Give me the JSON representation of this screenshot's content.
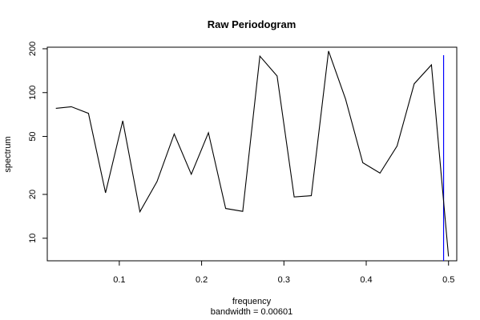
{
  "chart_data": {
    "type": "line",
    "title": "Raw Periodogram",
    "xlabel": "frequency",
    "xsublabel": "bandwidth = 0.00601",
    "ylabel": "spectrum",
    "y_scale": "log",
    "xlim": [
      0.0125,
      0.51
    ],
    "ylim": [
      7.0,
      205
    ],
    "x_ticks": [
      {
        "value": 0.1,
        "label": "0.1"
      },
      {
        "value": 0.2,
        "label": "0.2"
      },
      {
        "value": 0.3,
        "label": "0.3"
      },
      {
        "value": 0.4,
        "label": "0.4"
      },
      {
        "value": 0.5,
        "label": "0.5"
      }
    ],
    "y_ticks": [
      {
        "value": 10,
        "label": "10"
      },
      {
        "value": 20,
        "label": "20"
      },
      {
        "value": 50,
        "label": "50"
      },
      {
        "value": 100,
        "label": "100"
      },
      {
        "value": 200,
        "label": "200"
      }
    ],
    "series": [
      {
        "color": "#000000",
        "points": [
          [
            0.0229,
            78
          ],
          [
            0.0417,
            80
          ],
          [
            0.0625,
            72
          ],
          [
            0.0833,
            20.5
          ],
          [
            0.1042,
            64
          ],
          [
            0.125,
            15.2
          ],
          [
            0.1458,
            24.5
          ],
          [
            0.1667,
            52
          ],
          [
            0.1875,
            27.5
          ],
          [
            0.2083,
            53
          ],
          [
            0.2292,
            16
          ],
          [
            0.25,
            15.3
          ],
          [
            0.2708,
            178
          ],
          [
            0.2917,
            130
          ],
          [
            0.3125,
            19.2
          ],
          [
            0.3333,
            19.6
          ],
          [
            0.3542,
            193
          ],
          [
            0.375,
            90
          ],
          [
            0.3958,
            33
          ],
          [
            0.4167,
            28
          ],
          [
            0.4375,
            43
          ],
          [
            0.4583,
            115
          ],
          [
            0.4792,
            155
          ],
          [
            0.5,
            7.5
          ]
        ]
      }
    ],
    "reference_line": {
      "x": 0.494,
      "color": "#0000ff"
    }
  }
}
